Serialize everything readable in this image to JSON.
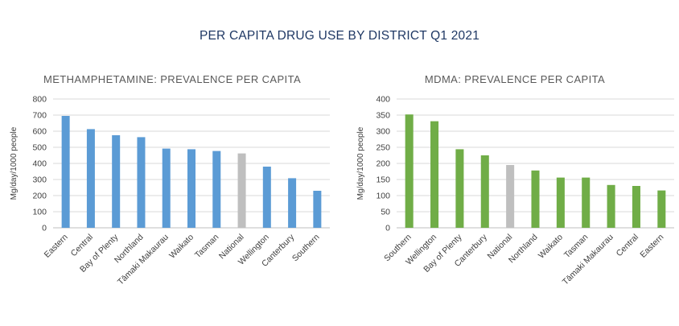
{
  "page": {
    "title": "PER CAPITA DRUG USE BY DISTRICT Q1 2021"
  },
  "colors": {
    "meth": "#5b9bd5",
    "mdma": "#70ad47",
    "national": "#bfbfbf"
  },
  "chart_data": [
    {
      "type": "bar",
      "title": "METHAMPHETAMINE: PREVALENCE PER CAPITA",
      "xlabel": "",
      "ylabel": "Mg/day/1000 people",
      "ylim": [
        0,
        800
      ],
      "yticks": [
        0,
        100,
        200,
        300,
        400,
        500,
        600,
        700,
        800
      ],
      "grid": true,
      "categories": [
        "Eastern",
        "Central",
        "Bay of Plenty",
        "Northland",
        "Tāmaki Makaurau",
        "Waikato",
        "Tasman",
        "National",
        "Wellington",
        "Canterbury",
        "Southern"
      ],
      "values": [
        695,
        613,
        575,
        563,
        492,
        488,
        477,
        462,
        380,
        308,
        230
      ],
      "highlight": "National"
    },
    {
      "type": "bar",
      "title": "MDMA: PREVALENCE PER CAPITA",
      "xlabel": "",
      "ylabel": "Mg/day/1000 people",
      "ylim": [
        0,
        400
      ],
      "yticks": [
        0,
        50,
        100,
        150,
        200,
        250,
        300,
        350,
        400
      ],
      "grid": true,
      "categories": [
        "Southern",
        "Wellington",
        "Bay of Plenty",
        "Canterbury",
        "National",
        "Northland",
        "Waikato",
        "Tasman",
        "Tāmaki Makaurau",
        "Central",
        "Eastern"
      ],
      "values": [
        352,
        331,
        244,
        225,
        195,
        178,
        156,
        156,
        133,
        130,
        116
      ],
      "highlight": "National"
    }
  ]
}
